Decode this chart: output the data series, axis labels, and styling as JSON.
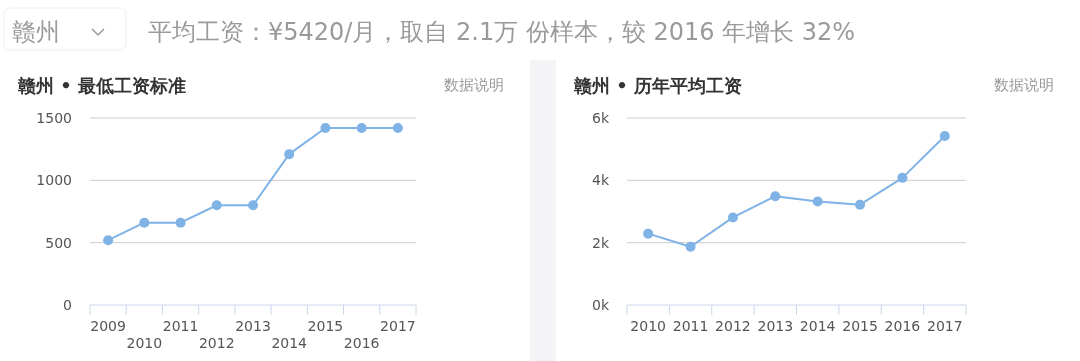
{
  "chart_data": [
    {
      "type": "line",
      "title": "赣州 • 最低工资标准",
      "annotations": [
        "赣州",
        "平均工资：¥5420/月，取自 2.1万 份样本，较 2016 年增长 32%",
        "数据说明"
      ],
      "categories": [
        "2009",
        "2010",
        "2011",
        "2012",
        "2013",
        "2014",
        "2015",
        "2016",
        "2017"
      ],
      "series": [
        {
          "color": "#7fb2e5",
          "values": [
            520,
            660,
            660,
            800,
            800,
            1210,
            1420,
            1420,
            1420
          ]
        }
      ],
      "ylim": [
        0,
        1500
      ],
      "yticks": [
        0,
        500,
        1000,
        1500
      ],
      "grid": "y",
      "marker": "circle"
    },
    {
      "type": "line",
      "title": "赣州 • 历年平均工资",
      "annotations": [
        "数据说明"
      ],
      "categories": [
        "2010",
        "2011",
        "2012",
        "2013",
        "2014",
        "2015",
        "2016",
        "2017"
      ],
      "series": [
        {
          "color": "#7fb2e5",
          "values": [
            2290,
            1870,
            2810,
            3490,
            3320,
            3220,
            4080,
            5420
          ]
        }
      ],
      "ylim": [
        0,
        6000
      ],
      "yticks": [
        {
          "value": 0,
          "label": "0k"
        },
        {
          "value": 2000,
          "label": "2k"
        },
        {
          "value": 4000,
          "label": "4k"
        },
        {
          "value": 6000,
          "label": "6k"
        }
      ],
      "grid": "y",
      "marker": "circle"
    }
  ]
}
